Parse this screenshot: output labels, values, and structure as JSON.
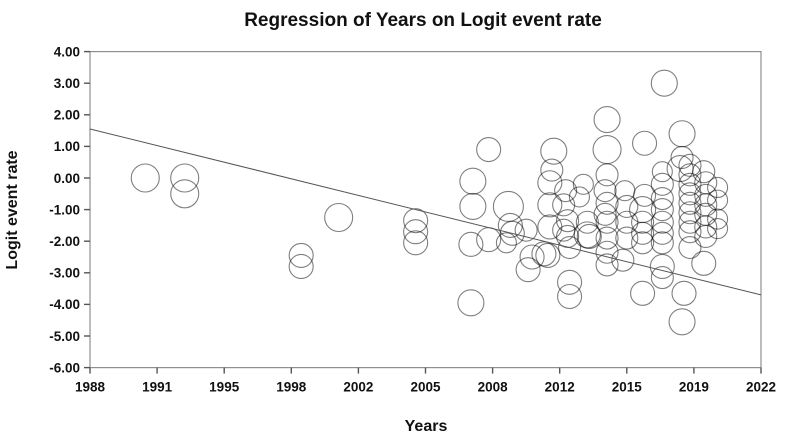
{
  "page_title": "Regression of Years on Logit event rate",
  "colors": {
    "background": "#ffffff",
    "text": "#111111",
    "axis_box": "#8f8f8f",
    "tick": "#555555",
    "circle_stroke": "#000000",
    "regression_line": "#555555"
  },
  "chart_data": {
    "type": "scatter",
    "title": "Regression of Years on Logit event rate",
    "xlabel": "Years",
    "ylabel": "Logit event rate",
    "xlim": [
      1988,
      2022
    ],
    "ylim": [
      -6,
      4
    ],
    "x_tick_labels": [
      "1988",
      "1991",
      "1995",
      "1998",
      "2002",
      "2005",
      "2008",
      "2012",
      "2015",
      "2019",
      "2022"
    ],
    "y_tick_labels": [
      "4.00",
      "3.00",
      "2.00",
      "1.00",
      "0.00",
      "-1.00",
      "-2.00",
      "-3.00",
      "-4.00",
      "-5.00",
      "-6.00"
    ],
    "grid": false,
    "legend": "none",
    "marker": "open-circle",
    "regression_line": {
      "x_start": 1988,
      "y_start": 1.55,
      "x_end": 2022,
      "y_end": -3.7
    },
    "points_format": [
      "year",
      "logit_event_rate",
      "marker_radius_px"
    ],
    "points": [
      [
        1990.8,
        0.0,
        14
      ],
      [
        1992.8,
        0.0,
        14
      ],
      [
        1992.8,
        -0.5,
        14
      ],
      [
        1998.7,
        -2.45,
        12
      ],
      [
        1998.7,
        -2.8,
        12
      ],
      [
        2000.6,
        -1.25,
        14
      ],
      [
        2004.5,
        -1.35,
        12
      ],
      [
        2004.5,
        -1.7,
        12
      ],
      [
        2004.5,
        -2.05,
        12
      ],
      [
        2007.4,
        -0.1,
        13
      ],
      [
        2007.4,
        -0.9,
        13
      ],
      [
        2007.3,
        -2.1,
        12
      ],
      [
        2007.3,
        -3.95,
        13
      ],
      [
        2008.2,
        0.9,
        12
      ],
      [
        2008.2,
        -1.95,
        12
      ],
      [
        2009.2,
        -0.9,
        15
      ],
      [
        2009.3,
        -1.5,
        12
      ],
      [
        2009.4,
        -1.75,
        12
      ],
      [
        2009.1,
        -2.05,
        10
      ],
      [
        2010.1,
        -1.65,
        11
      ],
      [
        2010.4,
        -2.5,
        12
      ],
      [
        2010.2,
        -2.9,
        12
      ],
      [
        2011.0,
        -2.4,
        12
      ],
      [
        2011.2,
        -2.45,
        12
      ],
      [
        2011.5,
        0.85,
        13
      ],
      [
        2011.4,
        0.25,
        11
      ],
      [
        2011.3,
        -0.15,
        12
      ],
      [
        2011.3,
        -0.85,
        12
      ],
      [
        2011.3,
        -1.55,
        12
      ],
      [
        2012.1,
        -0.4,
        11
      ],
      [
        2012.0,
        -0.85,
        11
      ],
      [
        2012.2,
        -1.35,
        11
      ],
      [
        2012.0,
        -1.65,
        11
      ],
      [
        2012.2,
        -1.85,
        11
      ],
      [
        2012.3,
        -2.2,
        11
      ],
      [
        2012.3,
        -3.3,
        12
      ],
      [
        2012.3,
        -3.75,
        12
      ],
      [
        2012.8,
        -0.6,
        10
      ],
      [
        2013.0,
        -0.2,
        10
      ],
      [
        2013.2,
        -1.4,
        11
      ],
      [
        2013.2,
        -1.8,
        13
      ],
      [
        2013.3,
        -1.85,
        12
      ],
      [
        2014.2,
        1.85,
        13
      ],
      [
        2014.2,
        0.9,
        14
      ],
      [
        2014.2,
        0.1,
        11
      ],
      [
        2014.1,
        -0.4,
        11
      ],
      [
        2014.2,
        -0.8,
        11
      ],
      [
        2014.1,
        -1.15,
        11
      ],
      [
        2014.2,
        -1.4,
        11
      ],
      [
        2014.2,
        -1.9,
        11
      ],
      [
        2014.2,
        -2.35,
        11
      ],
      [
        2014.2,
        -2.75,
        11
      ],
      [
        2015.1,
        -0.4,
        10
      ],
      [
        2015.2,
        -0.9,
        11
      ],
      [
        2015.2,
        -1.4,
        11
      ],
      [
        2015.2,
        -1.9,
        11
      ],
      [
        2015.0,
        -2.6,
        11
      ],
      [
        2016.1,
        1.1,
        12
      ],
      [
        2016.1,
        -0.55,
        11
      ],
      [
        2016.0,
        -1.0,
        13
      ],
      [
        2016.0,
        -1.4,
        11
      ],
      [
        2016.0,
        -1.75,
        11
      ],
      [
        2016.0,
        -2.05,
        11
      ],
      [
        2016.0,
        -3.65,
        12
      ],
      [
        2017.1,
        3.0,
        13
      ],
      [
        2017.0,
        0.2,
        10
      ],
      [
        2017.0,
        -0.2,
        11
      ],
      [
        2017.0,
        -0.65,
        11
      ],
      [
        2017.0,
        -1.0,
        11
      ],
      [
        2017.0,
        -1.4,
        11
      ],
      [
        2017.0,
        -1.75,
        11
      ],
      [
        2017.0,
        -2.05,
        11
      ],
      [
        2017.0,
        -2.8,
        12
      ],
      [
        2017.0,
        -3.15,
        11
      ],
      [
        2018.0,
        1.4,
        13
      ],
      [
        2018.0,
        0.65,
        11
      ],
      [
        2017.9,
        0.3,
        13
      ],
      [
        2018.4,
        0.4,
        11
      ],
      [
        2018.4,
        0.1,
        11
      ],
      [
        2018.4,
        -0.2,
        11
      ],
      [
        2018.4,
        -0.5,
        11
      ],
      [
        2018.4,
        -0.8,
        11
      ],
      [
        2018.4,
        -1.1,
        11
      ],
      [
        2018.4,
        -1.4,
        11
      ],
      [
        2018.4,
        -1.7,
        11
      ],
      [
        2018.4,
        -2.2,
        11
      ],
      [
        2018.1,
        -3.65,
        12
      ],
      [
        2018.0,
        -4.55,
        13
      ],
      [
        2019.1,
        0.2,
        11
      ],
      [
        2019.2,
        -0.15,
        11
      ],
      [
        2019.2,
        -0.55,
        11
      ],
      [
        2019.2,
        -0.85,
        11
      ],
      [
        2019.2,
        -1.15,
        11
      ],
      [
        2019.2,
        -1.55,
        11
      ],
      [
        2019.2,
        -1.85,
        11
      ],
      [
        2019.1,
        -2.7,
        12
      ],
      [
        2019.8,
        -0.3,
        10
      ],
      [
        2019.8,
        -0.7,
        10
      ],
      [
        2019.8,
        -1.3,
        10
      ],
      [
        2019.8,
        -1.6,
        10
      ]
    ]
  }
}
